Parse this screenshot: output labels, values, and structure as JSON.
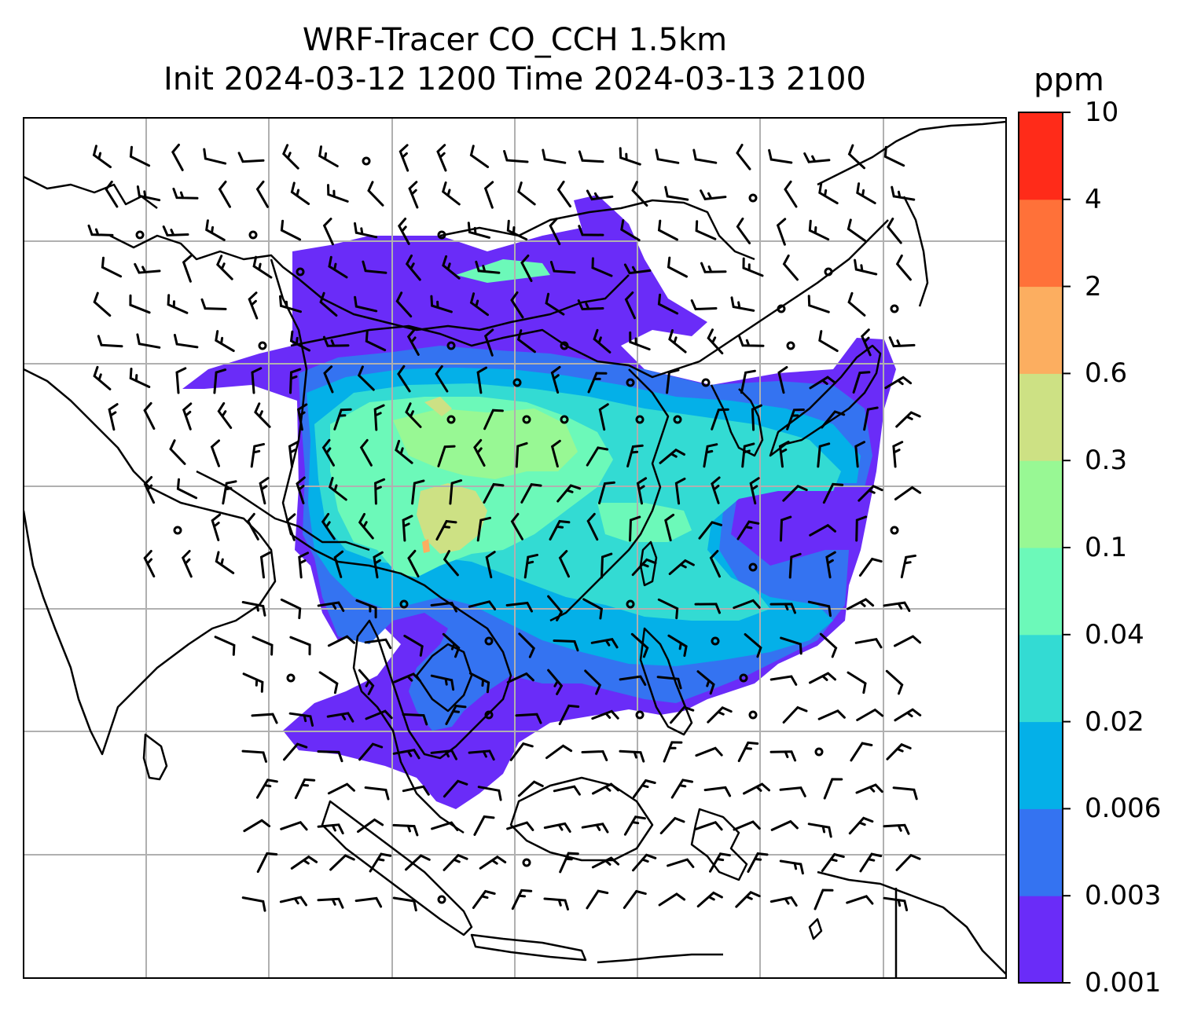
{
  "title": {
    "line1": "WRF-Tracer CO_CCH 1.5km",
    "line2": "Init 2024-03-12 1200 Time 2024-03-13 2100"
  },
  "colorbar": {
    "unit": "ppm",
    "levels": [
      "0.001",
      "0.003",
      "0.006",
      "0.02",
      "0.04",
      "0.1",
      "0.3",
      "0.6",
      "2",
      "4",
      "10"
    ],
    "colors": [
      "#6a2cf8",
      "#3473f1",
      "#04b0e8",
      "#33dbd3",
      "#6cf9b9",
      "#98f894",
      "#cde184",
      "#fcae60",
      "#ff7139",
      "#ff2b19"
    ]
  },
  "map": {
    "gridlines": true,
    "coastline_color": "#000000",
    "grid_color": "#b0b0b0",
    "wind_barbs": true
  }
}
